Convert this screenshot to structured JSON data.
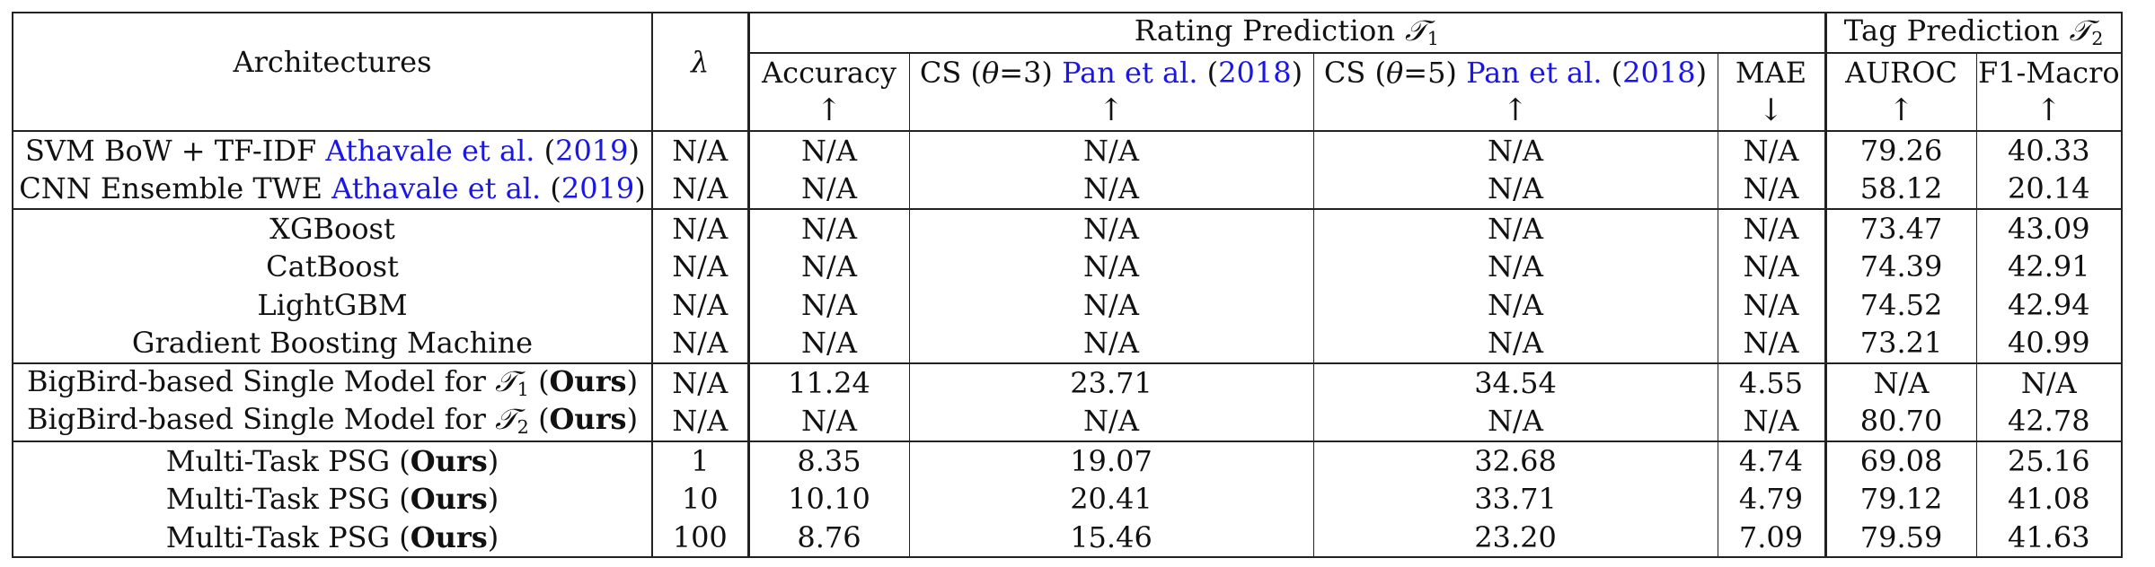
{
  "header": {
    "architectures": "Architectures",
    "lambda": "λ",
    "rating_group": "Rating Prediction",
    "rating_task": "𝒯",
    "rating_task_sub": "1",
    "tag_group": "Tag Prediction",
    "tag_task": "𝒯",
    "tag_task_sub": "2",
    "cols": {
      "accuracy": "Accuracy",
      "cs3_prefix": "CS (",
      "theta": "θ",
      "cs3_eq": "=3) ",
      "cs5_eq": "=5) ",
      "cite_pan": "Pan et al.",
      "cite_pan_year_open": " (",
      "cite_pan_year": "2018",
      "cite_pan_year_close": ")",
      "mae": "MAE",
      "auroc": "AUROC",
      "f1": "F1-Macro"
    },
    "arrows": {
      "accuracy": "↑",
      "cs3": "↑",
      "cs5": "↑",
      "mae": "↓",
      "auroc": "↑",
      "f1": "↑"
    }
  },
  "rows": [
    {
      "name_parts": [
        "SVM BoW + TF-IDF ",
        "Athavale et al.",
        " (",
        "2019",
        ")"
      ],
      "type": "cite",
      "lambda": "N/A",
      "acc": "N/A",
      "cs3": "N/A",
      "cs5": "N/A",
      "mae": "N/A",
      "auroc": "79.26",
      "f1": "40.33"
    },
    {
      "name_parts": [
        "CNN Ensemble TWE ",
        "Athavale et al.",
        " (",
        "2019",
        ")"
      ],
      "type": "cite",
      "lambda": "N/A",
      "acc": "N/A",
      "cs3": "N/A",
      "cs5": "N/A",
      "mae": "N/A",
      "auroc": "58.12",
      "f1": "20.14"
    },
    {
      "name": "XGBoost",
      "lambda": "N/A",
      "acc": "N/A",
      "cs3": "N/A",
      "cs5": "N/A",
      "mae": "N/A",
      "auroc": "73.47",
      "f1": "43.09"
    },
    {
      "name": "CatBoost",
      "lambda": "N/A",
      "acc": "N/A",
      "cs3": "N/A",
      "cs5": "N/A",
      "mae": "N/A",
      "auroc": "74.39",
      "f1": "42.91"
    },
    {
      "name": "LightGBM",
      "lambda": "N/A",
      "acc": "N/A",
      "cs3": "N/A",
      "cs5": "N/A",
      "mae": "N/A",
      "auroc": "74.52",
      "f1": "42.94"
    },
    {
      "name": "Gradient Boosting Machine",
      "lambda": "N/A",
      "acc": "N/A",
      "cs3": "N/A",
      "cs5": "N/A",
      "mae": "N/A",
      "auroc": "73.21",
      "f1": "40.99"
    },
    {
      "name_prefix": "BigBird-based Single Model for ",
      "task": "𝒯",
      "task_sub": "1",
      "ours_open": " (",
      "ours": "Ours",
      "ours_close": ")",
      "lambda": "N/A",
      "acc": "11.24",
      "cs3": "23.71",
      "cs5": "34.54",
      "mae": "4.55",
      "auroc": "N/A",
      "f1": "N/A"
    },
    {
      "name_prefix": "BigBird-based Single Model for ",
      "task": "𝒯",
      "task_sub": "2",
      "ours_open": " (",
      "ours": "Ours",
      "ours_close": ")",
      "lambda": "N/A",
      "acc": "N/A",
      "cs3": "N/A",
      "cs5": "N/A",
      "mae": "N/A",
      "auroc": "80.70",
      "f1": "42.78"
    },
    {
      "name_prefix": "Multi-Task PSG (",
      "ours": "Ours",
      "ours_close": ")",
      "lambda": "1",
      "acc": "8.35",
      "cs3": "19.07",
      "cs5": "32.68",
      "mae": "4.74",
      "auroc": "69.08",
      "f1": "25.16"
    },
    {
      "name_prefix": "Multi-Task PSG (",
      "ours": "Ours",
      "ours_close": ")",
      "lambda": "10",
      "acc": "10.10",
      "cs3": "20.41",
      "cs5": "33.71",
      "mae": "4.79",
      "auroc": "79.12",
      "f1": "41.08"
    },
    {
      "name_prefix": "Multi-Task PSG (",
      "ours": "Ours",
      "ours_close": ")",
      "lambda": "100",
      "acc": "8.76",
      "cs3": "15.46",
      "cs5": "23.20",
      "mae": "7.09",
      "auroc": "79.59",
      "f1": "41.63"
    }
  ],
  "colors": {
    "citation": "#1a17e6",
    "rule": "#222222",
    "text": "#111111"
  }
}
